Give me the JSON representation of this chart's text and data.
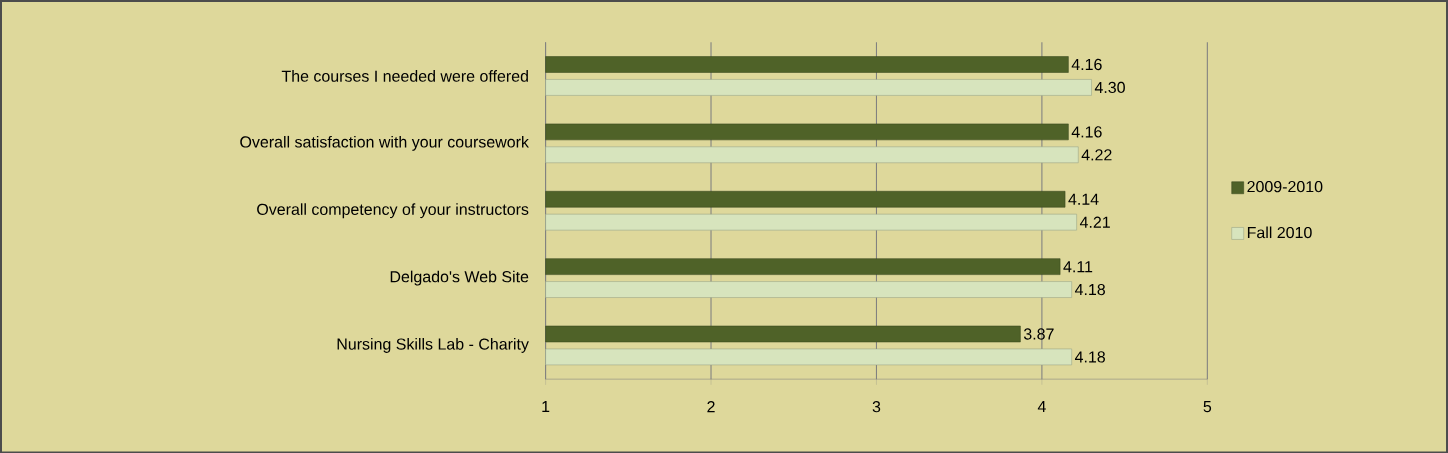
{
  "chart_data": {
    "type": "bar",
    "orientation": "horizontal",
    "categories": [
      "The courses I needed were offered",
      "Overall satisfaction with your coursework",
      "Overall competency of your instructors",
      "Delgado's Web Site",
      "Nursing Skills Lab - Charity"
    ],
    "series": [
      {
        "name": "2009-2010",
        "color": "#4f6228",
        "values": [
          4.16,
          4.16,
          4.14,
          4.11,
          3.87
        ],
        "value_labels": [
          "4.16",
          "4.16",
          "4.14",
          "4.11",
          "3.87"
        ]
      },
      {
        "name": "Fall 2010",
        "color": "#d7e4bd",
        "values": [
          4.3,
          4.22,
          4.21,
          4.18,
          4.18
        ],
        "value_labels": [
          "4.30",
          "4.22",
          "4.21",
          "4.18",
          "4.18"
        ]
      }
    ],
    "xlim": [
      1,
      5
    ],
    "xticks": [
      1,
      2,
      3,
      4,
      5
    ],
    "grid": "x",
    "legend": "right"
  }
}
